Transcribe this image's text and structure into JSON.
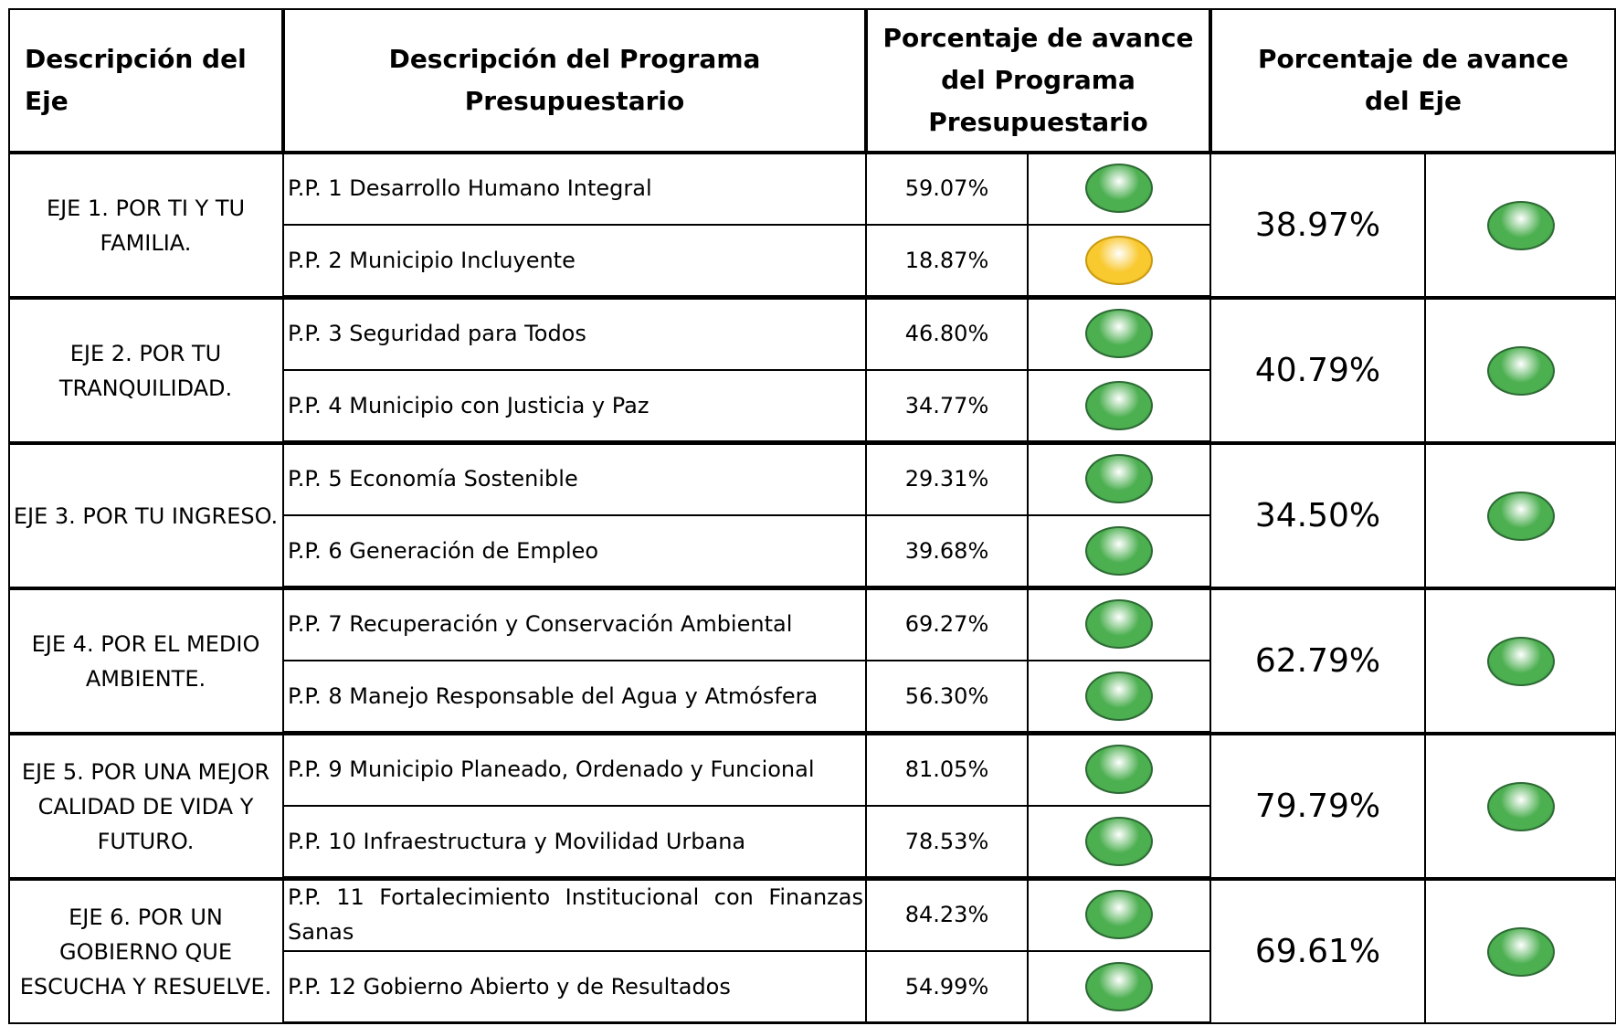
{
  "header": {
    "eje": "Descripción del Eje",
    "programa": "Descripción del Programa Presupuestario",
    "avance_programa": "Porcentaje de avance del Programa Presupuestario",
    "avance_eje": "Porcentaje de avance del Eje"
  },
  "ejes": [
    {
      "label": "EJE 1. POR TI Y TU FAMILIA.",
      "avance": "38.97%",
      "color": "#4caf50",
      "programas": [
        {
          "name": "P.P. 1 Desarrollo Humano Integral",
          "avance": "59.07%",
          "color": "#4caf50"
        },
        {
          "name": "P.P. 2 Municipio Incluyente",
          "avance": "18.87%",
          "color": "#f9c930"
        }
      ]
    },
    {
      "label": "EJE 2. POR TU TRANQUILIDAD.",
      "avance": "40.79%",
      "color": "#4caf50",
      "programas": [
        {
          "name": "P.P. 3 Seguridad para Todos",
          "avance": "46.80%",
          "color": "#4caf50"
        },
        {
          "name": "P.P. 4 Municipio con Justicia y Paz",
          "avance": "34.77%",
          "color": "#4caf50"
        }
      ]
    },
    {
      "label": "EJE 3. POR TU INGRESO.",
      "avance": "34.50%",
      "color": "#4caf50",
      "programas": [
        {
          "name": "P.P. 5 Economía Sostenible",
          "avance": "29.31%",
          "color": "#4caf50"
        },
        {
          "name": "P.P. 6 Generación de Empleo",
          "avance": "39.68%",
          "color": "#4caf50"
        }
      ]
    },
    {
      "label": "EJE 4. POR EL MEDIO AMBIENTE.",
      "avance": "62.79%",
      "color": "#4caf50",
      "programas": [
        {
          "name": "P.P. 7 Recuperación y Conservación Ambiental",
          "avance": "69.27%",
          "color": "#4caf50"
        },
        {
          "name": "P.P. 8 Manejo Responsable del Agua y Atmósfera",
          "avance": "56.30%",
          "color": "#4caf50"
        }
      ]
    },
    {
      "label": "EJE 5. POR UNA MEJOR CALIDAD DE VIDA Y FUTURO.",
      "avance": "79.79%",
      "color": "#4caf50",
      "programas": [
        {
          "name": "P.P. 9 Municipio Planeado, Ordenado y Funcional",
          "avance": "81.05%",
          "color": "#4caf50"
        },
        {
          "name": "P.P. 10 Infraestructura y Movilidad Urbana",
          "avance": "78.53%",
          "color": "#4caf50"
        }
      ]
    },
    {
      "label": "EJE 6. POR UN GOBIERNO QUE ESCUCHA Y RESUELVE.",
      "avance": "69.61%",
      "color": "#4caf50",
      "programas": [
        {
          "name": "P.P. 11 Fortalecimiento Institucional con Finanzas Sanas",
          "avance": "84.23%",
          "color": "#4caf50"
        },
        {
          "name": "P.P. 12 Gobierno Abierto y de Resultados",
          "avance": "54.99%",
          "color": "#4caf50"
        }
      ]
    }
  ]
}
